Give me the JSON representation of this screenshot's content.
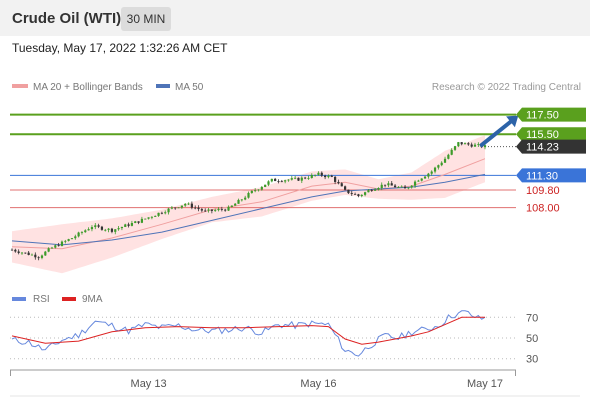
{
  "header": {
    "title": "Crude Oil (WTI)",
    "timeframe": "30 MIN"
  },
  "datetime": "Tuesday, May 17, 2022 1:32:26 AM CET",
  "legend": {
    "bollinger_label": "MA 20 + Bollinger Bands",
    "ma50_label": "MA 50",
    "credit": "Research © 2022 Trading Central"
  },
  "rsi_legend": {
    "rsi_label": "RSI",
    "ma_label": "9MA"
  },
  "colors": {
    "resistance": "#5aa01e",
    "pivot": "#3a74d8",
    "support": "#e07070",
    "current": "#333333",
    "candle_up": "#3c9b2a",
    "candle_down": "#333333",
    "ma20": "#f0a0a0",
    "band_fill": "#ffe2e2",
    "ma50": "#4f74b8",
    "arrow": "#2c63a8",
    "rsi": "#6688dd",
    "rsi_ma": "#dd2222"
  },
  "chart_data": [
    {
      "type": "line",
      "name": "price",
      "ylim": [
        100.0,
        119.4
      ],
      "levels": [
        {
          "label": "117.50",
          "value": 117.5,
          "kind": "resistance"
        },
        {
          "label": "115.50",
          "value": 115.5,
          "kind": "resistance"
        },
        {
          "label": "114.23",
          "value": 114.23,
          "kind": "current"
        },
        {
          "label": "111.30",
          "value": 111.3,
          "kind": "pivot"
        },
        {
          "label": "109.80",
          "value": 109.8,
          "kind": "support"
        },
        {
          "label": "108.00",
          "value": 108.0,
          "kind": "support"
        }
      ],
      "x_ticks": [
        {
          "label": "May 13",
          "index": 41
        },
        {
          "label": "May 16",
          "index": 92
        },
        {
          "label": "May 17",
          "index": 142
        }
      ],
      "ohlc_summary": {
        "start_close": 103.7,
        "low": 102.4,
        "high": 115.3,
        "last_close": 114.23
      },
      "price_path": [
        [
          0,
          103.7
        ],
        [
          8,
          103.0
        ],
        [
          12,
          103.9
        ],
        [
          18,
          104.9
        ],
        [
          24,
          106.1
        ],
        [
          30,
          105.7
        ],
        [
          38,
          106.6
        ],
        [
          46,
          107.7
        ],
        [
          52,
          108.4
        ],
        [
          58,
          107.6
        ],
        [
          65,
          107.9
        ],
        [
          72,
          109.6
        ],
        [
          78,
          110.8
        ],
        [
          86,
          110.9
        ],
        [
          92,
          111.4
        ],
        [
          96,
          111.1
        ],
        [
          100,
          109.7
        ],
        [
          104,
          109.2
        ],
        [
          108,
          109.9
        ],
        [
          112,
          110.4
        ],
        [
          118,
          109.9
        ],
        [
          122,
          110.9
        ],
        [
          126,
          111.7
        ],
        [
          130,
          113.0
        ],
        [
          134,
          114.6
        ],
        [
          138,
          114.4
        ],
        [
          142,
          114.23
        ]
      ],
      "ma20_path": [
        [
          0,
          104.0
        ],
        [
          15,
          103.8
        ],
        [
          30,
          104.9
        ],
        [
          45,
          106.3
        ],
        [
          60,
          107.8
        ],
        [
          75,
          108.6
        ],
        [
          90,
          110.2
        ],
        [
          100,
          110.6
        ],
        [
          110,
          109.9
        ],
        [
          120,
          110.2
        ],
        [
          130,
          111.4
        ],
        [
          142,
          113.0
        ]
      ],
      "band_half_width": [
        [
          0,
          1.6
        ],
        [
          15,
          2.5
        ],
        [
          30,
          2.0
        ],
        [
          45,
          1.5
        ],
        [
          60,
          1.3
        ],
        [
          75,
          1.5
        ],
        [
          90,
          1.5
        ],
        [
          100,
          1.3
        ],
        [
          110,
          1.0
        ],
        [
          120,
          1.4
        ],
        [
          130,
          2.4
        ],
        [
          142,
          2.4
        ]
      ],
      "ma50_path": [
        [
          0,
          104.6
        ],
        [
          15,
          104.2
        ],
        [
          30,
          104.7
        ],
        [
          45,
          105.5
        ],
        [
          60,
          106.7
        ],
        [
          75,
          107.9
        ],
        [
          90,
          109.1
        ],
        [
          100,
          109.7
        ],
        [
          110,
          109.9
        ],
        [
          120,
          110.1
        ],
        [
          130,
          110.6
        ],
        [
          142,
          111.4
        ]
      ],
      "forecast_arrow": {
        "from": [
          141,
          114.4
        ],
        "to": [
          152,
          117.4
        ]
      }
    },
    {
      "type": "line",
      "name": "rsi",
      "ylim": [
        21,
        79
      ],
      "y_ticks": [
        70,
        50,
        30
      ],
      "rsi_path": [
        [
          0,
          48
        ],
        [
          5,
          46
        ],
        [
          10,
          38
        ],
        [
          15,
          48
        ],
        [
          20,
          53
        ],
        [
          25,
          66
        ],
        [
          30,
          62
        ],
        [
          35,
          57
        ],
        [
          40,
          63
        ],
        [
          45,
          60
        ],
        [
          50,
          62
        ],
        [
          55,
          58
        ],
        [
          60,
          57
        ],
        [
          65,
          58
        ],
        [
          70,
          60
        ],
        [
          75,
          55
        ],
        [
          80,
          63
        ],
        [
          85,
          62
        ],
        [
          90,
          64
        ],
        [
          95,
          63
        ],
        [
          100,
          38
        ],
        [
          104,
          34
        ],
        [
          108,
          44
        ],
        [
          112,
          52
        ],
        [
          116,
          50
        ],
        [
          120,
          56
        ],
        [
          124,
          58
        ],
        [
          128,
          62
        ],
        [
          132,
          72
        ],
        [
          136,
          75
        ],
        [
          140,
          69
        ],
        [
          142,
          69
        ]
      ],
      "rsi_ma_path": [
        [
          0,
          52
        ],
        [
          10,
          45
        ],
        [
          20,
          47
        ],
        [
          30,
          56
        ],
        [
          40,
          60
        ],
        [
          50,
          61
        ],
        [
          60,
          60
        ],
        [
          70,
          60
        ],
        [
          80,
          61
        ],
        [
          90,
          62
        ],
        [
          95,
          61
        ],
        [
          100,
          49
        ],
        [
          105,
          44
        ],
        [
          110,
          46
        ],
        [
          115,
          49
        ],
        [
          120,
          52
        ],
        [
          125,
          56
        ],
        [
          130,
          63
        ],
        [
          135,
          70
        ],
        [
          142,
          70
        ]
      ]
    }
  ]
}
